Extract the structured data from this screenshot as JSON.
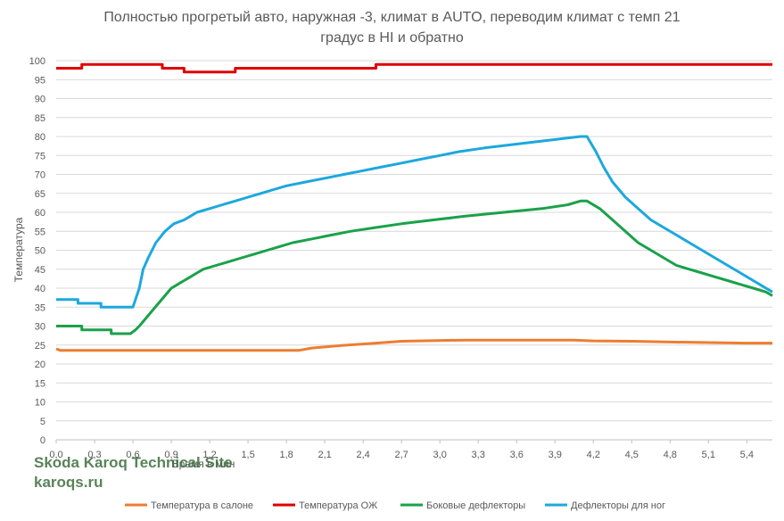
{
  "chart_data": {
    "type": "line",
    "title": [
      "Полностью прогретый авто, наружная -3, климат в AUTO, переводим климат с темп 21",
      "градус в HI и обратно"
    ],
    "xlabel": "Время в мин",
    "ylabel": "Температура",
    "xlim": [
      0,
      5.6
    ],
    "ylim": [
      0,
      100
    ],
    "xticks": [
      "0,0",
      "0,3",
      "0,6",
      "0,9",
      "1,2",
      "1,5",
      "1,8",
      "2,1",
      "2,4",
      "2,7",
      "3,0",
      "3,3",
      "3,6",
      "3,9",
      "4,2",
      "4,5",
      "4,8",
      "5,1",
      "5,4"
    ],
    "xtick_values": [
      0,
      0.3,
      0.6,
      0.9,
      1.2,
      1.5,
      1.8,
      2.1,
      2.4,
      2.7,
      3.0,
      3.3,
      3.6,
      3.9,
      4.2,
      4.5,
      4.8,
      5.1,
      5.4
    ],
    "yticks": [
      0,
      5,
      10,
      15,
      20,
      25,
      30,
      35,
      40,
      45,
      50,
      55,
      60,
      65,
      70,
      75,
      80,
      85,
      90,
      95,
      100
    ],
    "grid": true,
    "legend_position": "bottom",
    "series": [
      {
        "name": "Температура в салоне",
        "color": "#ED7D31",
        "points": [
          [
            0,
            24
          ],
          [
            0.03,
            23.6
          ],
          [
            1.9,
            23.6
          ],
          [
            2.0,
            24.2
          ],
          [
            2.2,
            24.8
          ],
          [
            2.5,
            25.5
          ],
          [
            2.7,
            26
          ],
          [
            3.2,
            26.3
          ],
          [
            4.05,
            26.3
          ],
          [
            4.2,
            26.1
          ],
          [
            4.5,
            26
          ],
          [
            4.8,
            25.8
          ],
          [
            5.4,
            25.5
          ],
          [
            5.6,
            25.5
          ]
        ]
      },
      {
        "name": "Температура ОЖ",
        "color": "#E00000",
        "points": [
          [
            0,
            98
          ],
          [
            0.2,
            98
          ],
          [
            0.2,
            99
          ],
          [
            0.83,
            99
          ],
          [
            0.83,
            98
          ],
          [
            1.0,
            98
          ],
          [
            1.0,
            97
          ],
          [
            1.4,
            97
          ],
          [
            1.4,
            98
          ],
          [
            2.5,
            98
          ],
          [
            2.5,
            99
          ],
          [
            5.6,
            99
          ]
        ]
      },
      {
        "name": "Боковые дефлекторы",
        "color": "#1AA14A",
        "points": [
          [
            0,
            30
          ],
          [
            0.2,
            30
          ],
          [
            0.2,
            29
          ],
          [
            0.43,
            29
          ],
          [
            0.43,
            28
          ],
          [
            0.58,
            28
          ],
          [
            0.62,
            29
          ],
          [
            0.65,
            30
          ],
          [
            0.7,
            32
          ],
          [
            0.75,
            34
          ],
          [
            0.8,
            36
          ],
          [
            0.85,
            38
          ],
          [
            0.9,
            40
          ],
          [
            0.95,
            41
          ],
          [
            1.0,
            42
          ],
          [
            1.05,
            43
          ],
          [
            1.1,
            44
          ],
          [
            1.15,
            45
          ],
          [
            1.25,
            46
          ],
          [
            1.35,
            47
          ],
          [
            1.45,
            48
          ],
          [
            1.55,
            49
          ],
          [
            1.65,
            50
          ],
          [
            1.75,
            51
          ],
          [
            1.85,
            52
          ],
          [
            2.0,
            53
          ],
          [
            2.15,
            54
          ],
          [
            2.3,
            55
          ],
          [
            2.5,
            56
          ],
          [
            2.7,
            57
          ],
          [
            2.95,
            58
          ],
          [
            3.2,
            59
          ],
          [
            3.5,
            60
          ],
          [
            3.8,
            61
          ],
          [
            4.0,
            62
          ],
          [
            4.1,
            63
          ],
          [
            4.15,
            63
          ],
          [
            4.25,
            61
          ],
          [
            4.35,
            58
          ],
          [
            4.45,
            55
          ],
          [
            4.55,
            52
          ],
          [
            4.65,
            50
          ],
          [
            4.75,
            48
          ],
          [
            4.85,
            46
          ],
          [
            4.95,
            45
          ],
          [
            5.05,
            44
          ],
          [
            5.15,
            43
          ],
          [
            5.25,
            42
          ],
          [
            5.35,
            41
          ],
          [
            5.45,
            40
          ],
          [
            5.55,
            39
          ],
          [
            5.6,
            38
          ]
        ]
      },
      {
        "name": "Дефлекторы для ног",
        "color": "#1CA8DD",
        "points": [
          [
            0,
            37
          ],
          [
            0.17,
            37
          ],
          [
            0.17,
            36
          ],
          [
            0.35,
            36
          ],
          [
            0.35,
            35
          ],
          [
            0.6,
            35
          ],
          [
            0.62,
            37
          ],
          [
            0.65,
            40
          ],
          [
            0.68,
            45
          ],
          [
            0.72,
            48
          ],
          [
            0.78,
            52
          ],
          [
            0.85,
            55
          ],
          [
            0.92,
            57
          ],
          [
            1.0,
            58
          ],
          [
            1.05,
            59
          ],
          [
            1.1,
            60
          ],
          [
            1.2,
            61
          ],
          [
            1.3,
            62
          ],
          [
            1.4,
            63
          ],
          [
            1.5,
            64
          ],
          [
            1.6,
            65
          ],
          [
            1.7,
            66
          ],
          [
            1.8,
            67
          ],
          [
            1.95,
            68
          ],
          [
            2.1,
            69
          ],
          [
            2.25,
            70
          ],
          [
            2.4,
            71
          ],
          [
            2.55,
            72
          ],
          [
            2.7,
            73
          ],
          [
            2.85,
            74
          ],
          [
            3.0,
            75
          ],
          [
            3.15,
            76
          ],
          [
            3.35,
            77
          ],
          [
            3.6,
            78
          ],
          [
            3.85,
            79
          ],
          [
            4.1,
            80
          ],
          [
            4.15,
            80
          ],
          [
            4.22,
            76
          ],
          [
            4.28,
            72
          ],
          [
            4.35,
            68
          ],
          [
            4.45,
            64
          ],
          [
            4.55,
            61
          ],
          [
            4.65,
            58
          ],
          [
            4.75,
            56
          ],
          [
            4.85,
            54
          ],
          [
            4.95,
            52
          ],
          [
            5.05,
            50
          ],
          [
            5.15,
            48
          ],
          [
            5.25,
            46
          ],
          [
            5.35,
            44
          ],
          [
            5.45,
            42
          ],
          [
            5.5,
            41
          ],
          [
            5.55,
            40
          ],
          [
            5.6,
            39
          ]
        ]
      }
    ]
  },
  "watermark": {
    "line1": "Skoda Karoq Technical Site",
    "line2": "karoqs.ru"
  }
}
